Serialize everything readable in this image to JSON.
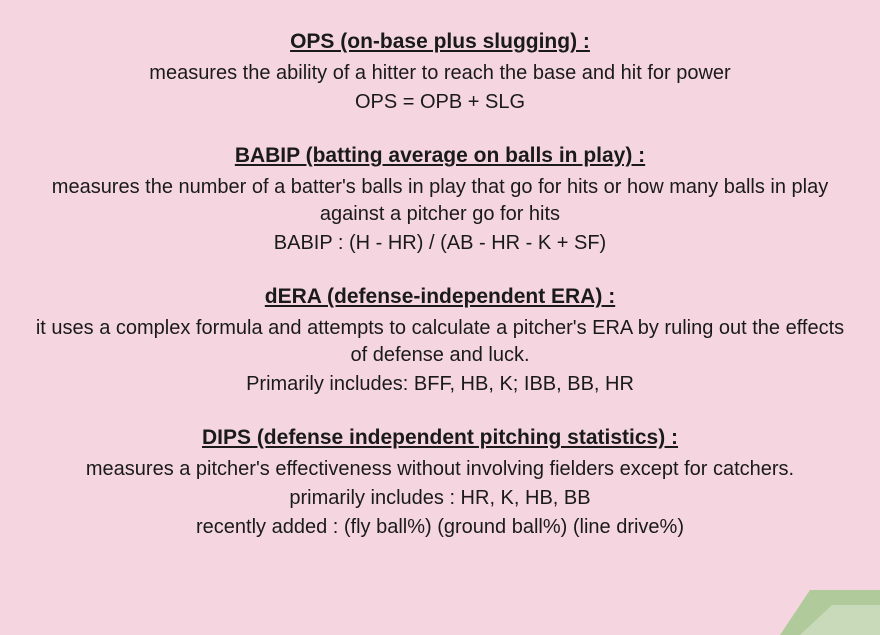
{
  "background_color": "#f5d6e0",
  "text_color": "#1a1a1a",
  "font_family": "Comic Sans MS",
  "heading_fontsize": 21,
  "body_fontsize": 20,
  "corner_accent_color": "#93c47d",
  "sections": [
    {
      "heading": "OPS (on-base plus slugging) :",
      "desc": "measures the ability of a hitter to reach the base and hit for power",
      "formula": "OPS = OPB + SLG"
    },
    {
      "heading": "BABIP (batting average on balls in play) :",
      "desc": "measures the number of a batter's balls in play that go for hits or how many balls in play against a pitcher go for hits",
      "formula": "BABIP : (H - HR) / (AB - HR - K + SF)"
    },
    {
      "heading": "dERA (defense-independent ERA) :",
      "desc": "it uses a complex formula and attempts to calculate a pitcher's ERA by ruling out the effects of defense and luck.",
      "formula": "Primarily includes: BFF, HB, K; IBB, BB, HR"
    },
    {
      "heading": "DIPS (defense independent pitching statistics) :",
      "desc": "measures a pitcher's effectiveness without involving fielders except for catchers.",
      "formula": "primarily includes : HR, K, HB, BB",
      "formula2": "recently added : (fly ball%) (ground ball%) (line drive%)"
    }
  ]
}
